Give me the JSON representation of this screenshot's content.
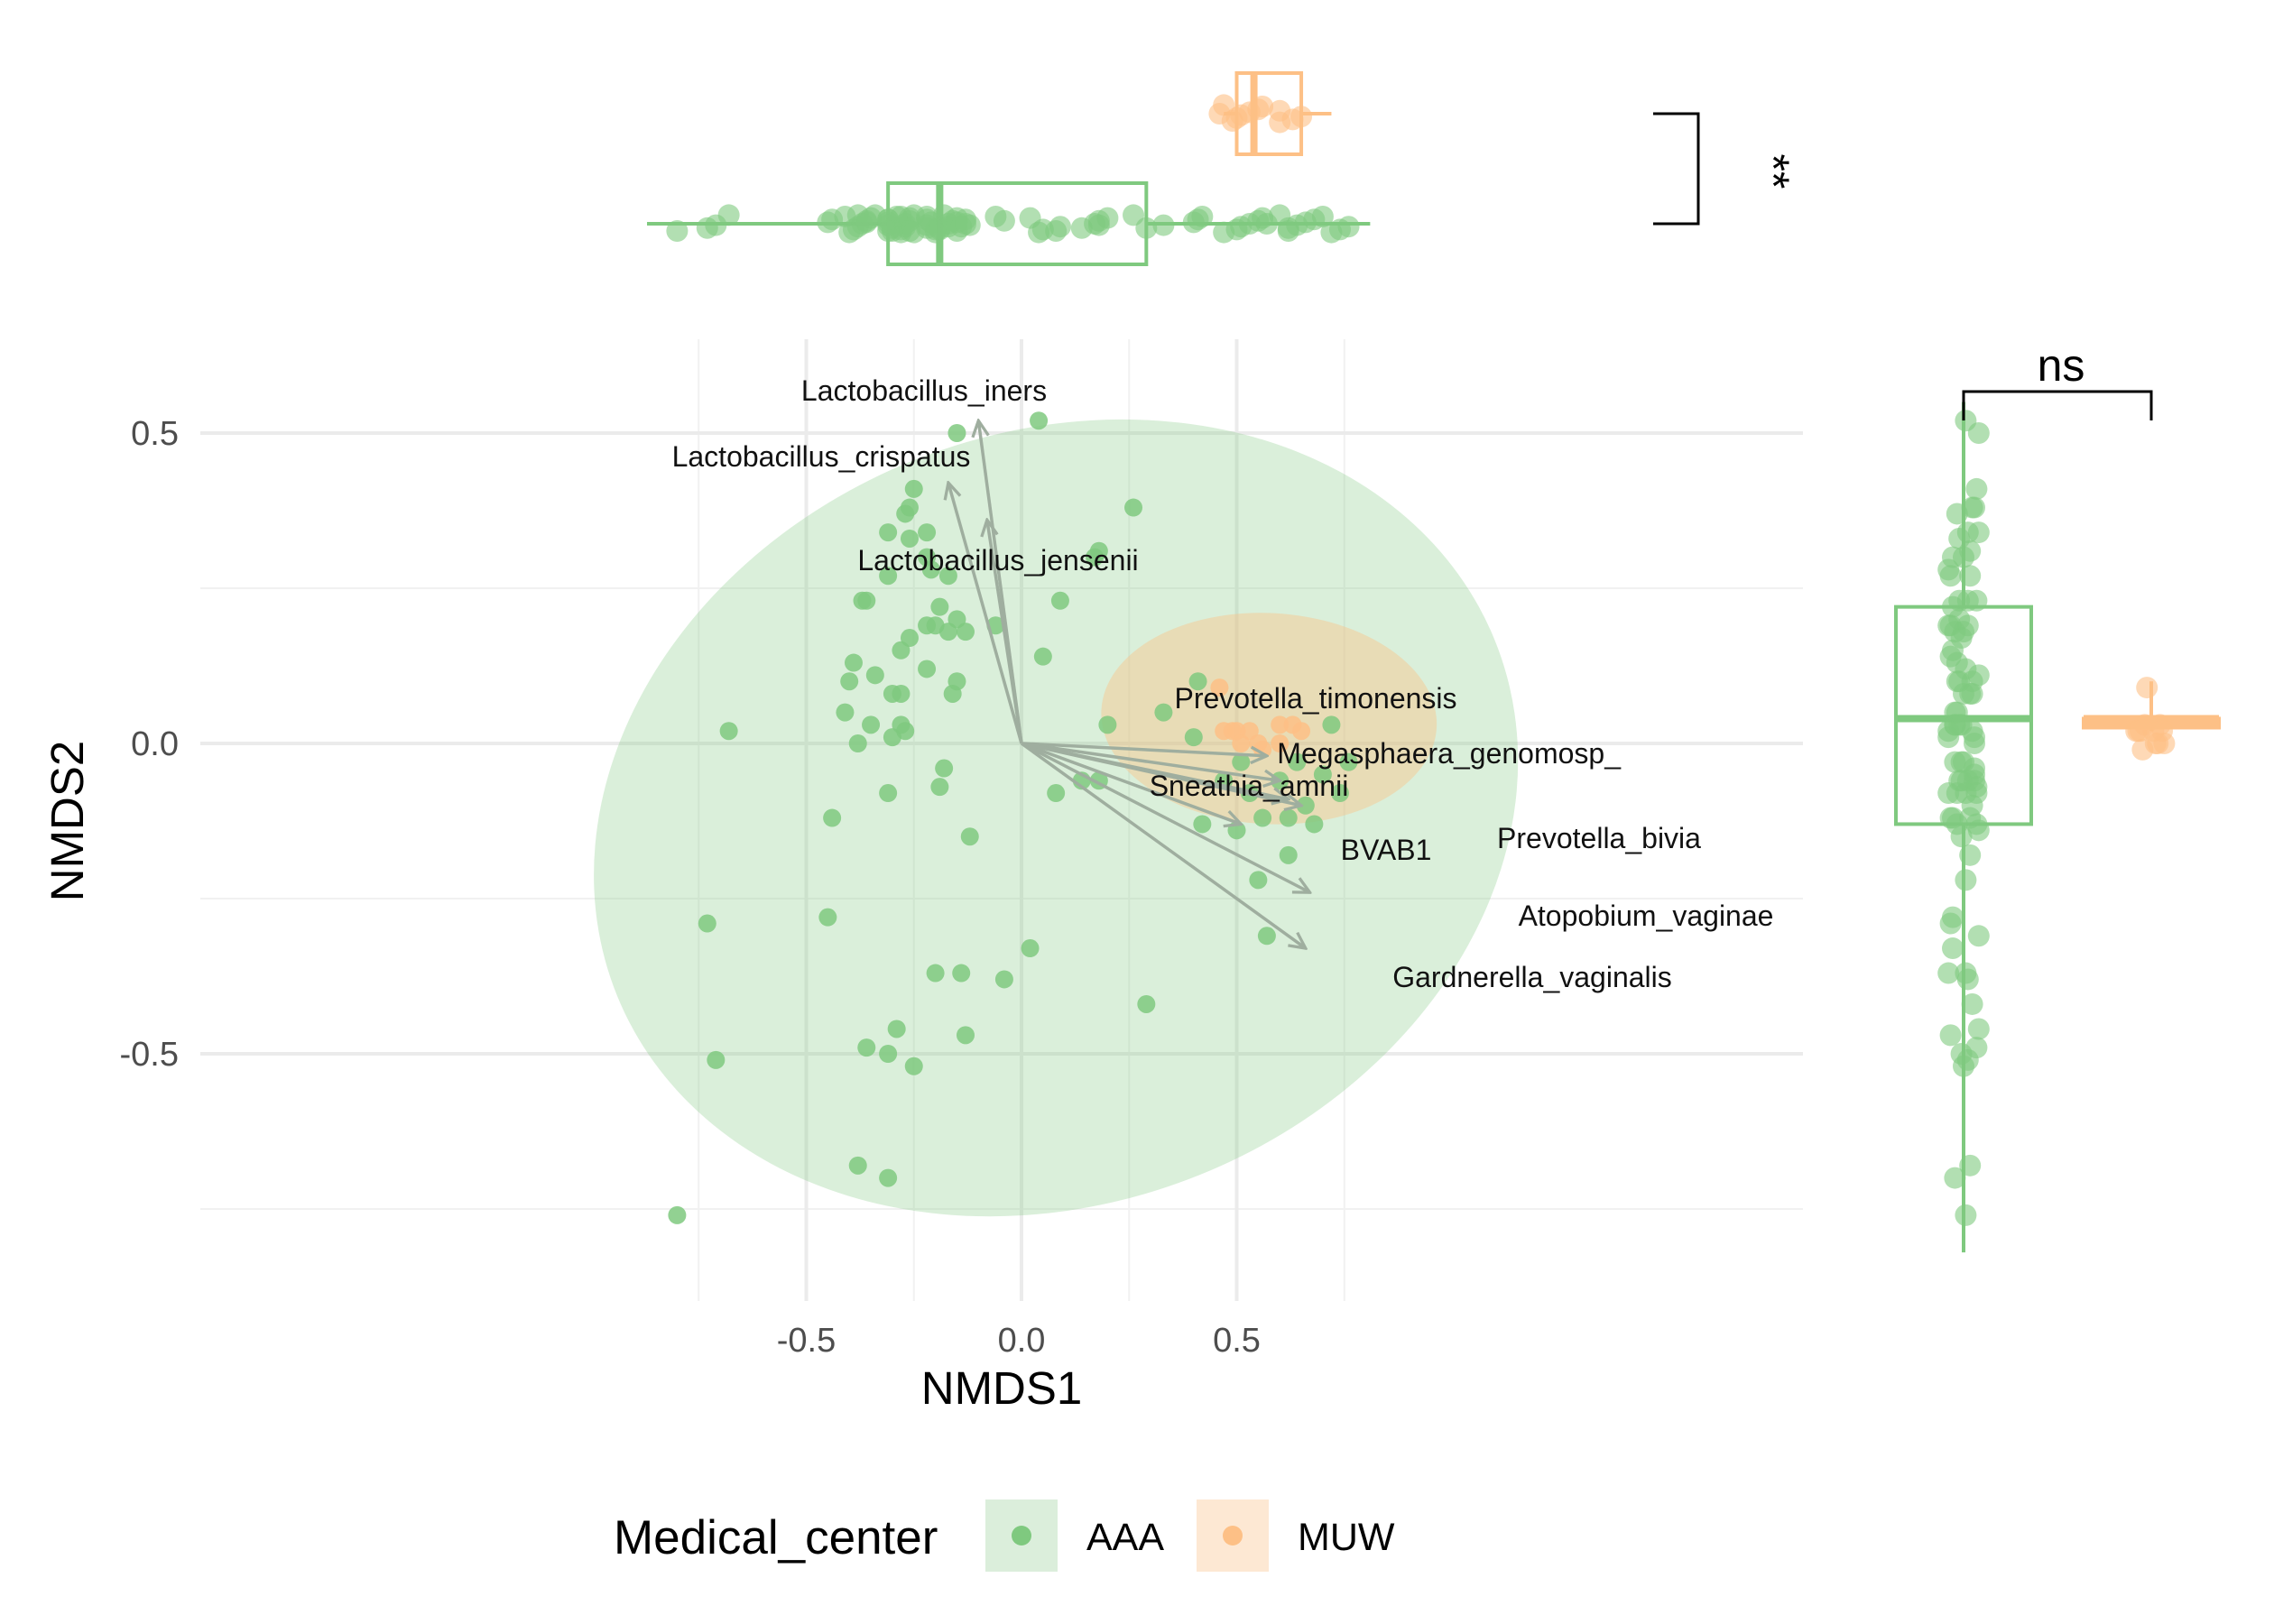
{
  "chart_data": {
    "type": "scatter",
    "subtype": "NMDS ordination with marginal boxplots",
    "xlabel": "NMDS1",
    "ylabel": "NMDS2",
    "xlim": [
      -0.95,
      0.92
    ],
    "ylim": [
      -0.9,
      0.65
    ],
    "xticks": [
      -0.5,
      0.0,
      0.5
    ],
    "yticks": [
      -0.5,
      0.0,
      0.5
    ],
    "xtick_labels": [
      "-0.5",
      "0.0",
      "0.5"
    ],
    "ytick_labels": [
      "-0.5",
      "0.0",
      "0.5"
    ],
    "grid": true,
    "colors": {
      "AAA": "#7fc97f",
      "MUW": "#fdc086",
      "vector": "#9fae9f",
      "bracket": "#000000"
    },
    "legend": {
      "title": "Medical_center",
      "position": "bottom",
      "entries": [
        {
          "label": "AAA",
          "color": "#7fc97f"
        },
        {
          "label": "MUW",
          "color": "#fdc086"
        }
      ]
    },
    "series": [
      {
        "name": "AAA",
        "ellipse": {
          "center": [
            0.08,
            -0.12
          ],
          "semi_axes": [
            1.1,
            0.62
          ],
          "angle_deg": 22
        },
        "points": [
          [
            -0.68,
            0.02
          ],
          [
            -0.8,
            -0.76
          ],
          [
            -0.73,
            -0.29
          ],
          [
            -0.71,
            -0.51
          ],
          [
            -0.45,
            -0.28
          ],
          [
            -0.44,
            -0.12
          ],
          [
            -0.41,
            0.05
          ],
          [
            -0.4,
            0.1
          ],
          [
            -0.39,
            0.13
          ],
          [
            -0.38,
            0.0
          ],
          [
            -0.37,
            0.23
          ],
          [
            -0.36,
            0.23
          ],
          [
            -0.35,
            0.03
          ],
          [
            -0.34,
            0.11
          ],
          [
            -0.3,
            0.08
          ],
          [
            -0.3,
            0.01
          ],
          [
            -0.31,
            -0.08
          ],
          [
            -0.31,
            0.27
          ],
          [
            -0.31,
            0.34
          ],
          [
            -0.28,
            0.15
          ],
          [
            -0.28,
            0.08
          ],
          [
            -0.28,
            0.03
          ],
          [
            -0.27,
            0.02
          ],
          [
            -0.27,
            0.37
          ],
          [
            -0.26,
            0.38
          ],
          [
            -0.26,
            0.33
          ],
          [
            -0.25,
            0.41
          ],
          [
            -0.26,
            0.17
          ],
          [
            -0.22,
            0.34
          ],
          [
            -0.22,
            0.3
          ],
          [
            -0.21,
            0.28
          ],
          [
            -0.22,
            0.12
          ],
          [
            -0.22,
            0.19
          ],
          [
            -0.2,
            0.19
          ],
          [
            -0.19,
            0.22
          ],
          [
            -0.17,
            0.27
          ],
          [
            -0.17,
            0.18
          ],
          [
            -0.16,
            0.08
          ],
          [
            -0.15,
            0.1
          ],
          [
            -0.18,
            -0.04
          ],
          [
            -0.15,
            0.2
          ],
          [
            -0.19,
            -0.07
          ],
          [
            -0.12,
            -0.15
          ],
          [
            -0.15,
            0.5
          ],
          [
            -0.13,
            0.18
          ],
          [
            -0.06,
            0.19
          ],
          [
            0.04,
            0.52
          ],
          [
            0.05,
            0.14
          ],
          [
            0.09,
            0.23
          ],
          [
            0.17,
            0.3
          ],
          [
            0.18,
            0.31
          ],
          [
            0.2,
            0.03
          ],
          [
            0.26,
            0.38
          ],
          [
            0.08,
            -0.08
          ],
          [
            0.14,
            -0.06
          ],
          [
            0.18,
            -0.06
          ],
          [
            -0.36,
            -0.49
          ],
          [
            -0.31,
            -0.5
          ],
          [
            -0.29,
            -0.46
          ],
          [
            -0.25,
            -0.52
          ],
          [
            -0.2,
            -0.37
          ],
          [
            -0.14,
            -0.37
          ],
          [
            -0.13,
            -0.47
          ],
          [
            -0.04,
            -0.38
          ],
          [
            0.02,
            -0.33
          ],
          [
            -0.38,
            -0.68
          ],
          [
            -0.31,
            -0.7
          ],
          [
            0.29,
            -0.42
          ],
          [
            0.33,
            0.05
          ],
          [
            0.4,
            0.01
          ],
          [
            0.41,
            0.1
          ],
          [
            0.42,
            -0.13
          ],
          [
            0.47,
            -0.06
          ],
          [
            0.5,
            -0.14
          ],
          [
            0.51,
            -0.03
          ],
          [
            0.53,
            -0.08
          ],
          [
            0.55,
            -0.22
          ],
          [
            0.56,
            -0.12
          ],
          [
            0.6,
            -0.06
          ],
          [
            0.62,
            -0.12
          ],
          [
            0.62,
            -0.18
          ],
          [
            0.64,
            -0.03
          ],
          [
            0.66,
            -0.1
          ],
          [
            0.68,
            -0.13
          ],
          [
            0.7,
            -0.05
          ],
          [
            0.72,
            0.03
          ],
          [
            0.74,
            -0.08
          ],
          [
            0.76,
            -0.03
          ],
          [
            0.57,
            -0.31
          ]
        ]
      },
      {
        "name": "MUW",
        "ellipse": {
          "center": [
            0.575,
            0.04
          ],
          "semi_axes": [
            0.39,
            0.17
          ],
          "angle_deg": -3
        },
        "points": [
          [
            0.47,
            0.02
          ],
          [
            0.49,
            0.02
          ],
          [
            0.5,
            0.02
          ],
          [
            0.51,
            0.0
          ],
          [
            0.53,
            0.02
          ],
          [
            0.55,
            0.0
          ],
          [
            0.56,
            -0.01
          ],
          [
            0.6,
            0.03
          ],
          [
            0.63,
            0.03
          ],
          [
            0.65,
            0.02
          ],
          [
            0.46,
            0.09
          ],
          [
            0.6,
            0.0
          ]
        ]
      }
    ],
    "vectors": [
      {
        "label": "Lactobacillus_iners",
        "end": [
          -0.1,
          0.52
        ]
      },
      {
        "label": "Lactobacillus_crispatus",
        "end": [
          -0.17,
          0.42
        ]
      },
      {
        "label": "Lactobacillus_jensenii",
        "end": [
          -0.08,
          0.36
        ]
      },
      {
        "label": "Prevotella_timonensis",
        "end": [
          0.57,
          -0.02
        ]
      },
      {
        "label": "Megasphaera_genomosp_",
        "end": [
          0.6,
          -0.06
        ]
      },
      {
        "label": "Sneathia_amnii",
        "end": [
          0.62,
          -0.09
        ]
      },
      {
        "label": "BVAB1",
        "end": [
          0.51,
          -0.13
        ]
      },
      {
        "label": "Prevotella_bivia",
        "end": [
          0.65,
          -0.1
        ]
      },
      {
        "label": "Atopobium_vaginae",
        "end": [
          0.67,
          -0.24
        ]
      },
      {
        "label": "Gardnerella_vaginalis",
        "end": [
          0.66,
          -0.33
        ]
      }
    ],
    "marginal_x": {
      "groups": [
        {
          "name": "AAA",
          "min": -0.87,
          "q1": -0.31,
          "median": -0.19,
          "q3": 0.29,
          "max": 0.81
        },
        {
          "name": "MUW",
          "min": 0.47,
          "q1": 0.5,
          "median": 0.54,
          "q3": 0.65,
          "max": 0.72
        }
      ],
      "significance": "**"
    },
    "marginal_y": {
      "groups": [
        {
          "name": "AAA",
          "min": -0.82,
          "q1": -0.13,
          "median": 0.04,
          "q3": 0.22,
          "max": 0.55
        },
        {
          "name": "MUW",
          "min": 0.02,
          "q1": 0.03,
          "median": 0.04,
          "q3": 0.04,
          "max": 0.1
        }
      ],
      "significance": "ns"
    }
  }
}
